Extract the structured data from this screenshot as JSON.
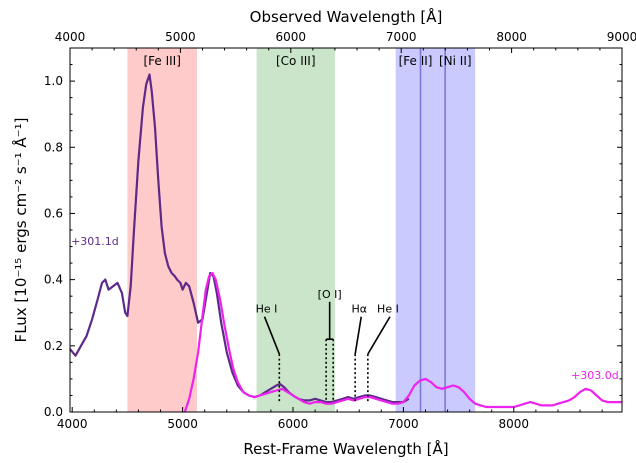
{
  "chart_data": {
    "type": "line",
    "title": "",
    "xlabel": "Rest-Frame Wavelength [Å]",
    "x2label": "Observed Wavelength [Å]",
    "ylabel": "FLux [10⁻¹⁵ ergs cm⁻² s⁻¹ Å⁻¹]",
    "xlim": [
      3980,
      8980
    ],
    "ylim": [
      0,
      1.1
    ],
    "x2lim": [
      4000,
      9000
    ],
    "xticks": [
      4000,
      5000,
      6000,
      7000,
      8000
    ],
    "xtick_labels": [
      "4000",
      "5000",
      "6000",
      "7000",
      "8000"
    ],
    "x2ticks": [
      4000,
      5000,
      6000,
      7000,
      8000,
      9000
    ],
    "x2tick_labels": [
      "4000",
      "5000",
      "6000",
      "7000",
      "8000",
      "9000"
    ],
    "yticks": [
      0,
      0.2,
      0.4,
      0.6,
      0.8,
      1.0
    ],
    "ytick_labels": [
      "0.0",
      "0.2",
      "0.4",
      "0.6",
      "0.8",
      "1.0"
    ],
    "grid": false,
    "bands": [
      {
        "label": "[Fe III]",
        "x0": 4500,
        "x1": 5130,
        "color": "#ff9f9f"
      },
      {
        "label": "[Co III]",
        "x0": 5670,
        "x1": 6380,
        "color": "#9fcf9f"
      },
      {
        "label": "[Fe II]",
        "x0": 6930,
        "x1": 7290,
        "color": "#9f9fff"
      },
      {
        "label": "[Ni II]",
        "x0": 7290,
        "x1": 7650,
        "color": "#9f9fff"
      }
    ],
    "band_lines": [
      7155,
      7378
    ],
    "series": [
      {
        "name": "+301.1d",
        "color": "#5e2a8a",
        "x": [
          3980,
          4030,
          4080,
          4130,
          4180,
          4230,
          4270,
          4300,
          4330,
          4370,
          4410,
          4450,
          4480,
          4500,
          4530,
          4560,
          4600,
          4640,
          4670,
          4700,
          4720,
          4750,
          4780,
          4810,
          4840,
          4870,
          4900,
          4930,
          4950,
          4980,
          5000,
          5030,
          5060,
          5100,
          5140,
          5180,
          5200,
          5230,
          5250,
          5280,
          5310,
          5350,
          5400,
          5450,
          5500,
          5550,
          5600,
          5650,
          5700,
          5750,
          5800,
          5850,
          5880,
          5920,
          5960,
          6000,
          6050,
          6100,
          6150,
          6200,
          6250,
          6300,
          6350,
          6400,
          6450,
          6500,
          6550,
          6600,
          6650,
          6700,
          6750,
          6800,
          6850,
          6900,
          6950,
          7000,
          7050
        ],
        "y": [
          0.19,
          0.17,
          0.2,
          0.23,
          0.28,
          0.34,
          0.39,
          0.4,
          0.37,
          0.38,
          0.39,
          0.36,
          0.3,
          0.29,
          0.38,
          0.55,
          0.76,
          0.92,
          0.99,
          1.02,
          0.97,
          0.86,
          0.7,
          0.56,
          0.48,
          0.44,
          0.42,
          0.41,
          0.4,
          0.39,
          0.37,
          0.39,
          0.38,
          0.33,
          0.27,
          0.28,
          0.32,
          0.38,
          0.42,
          0.41,
          0.36,
          0.27,
          0.18,
          0.12,
          0.08,
          0.06,
          0.05,
          0.045,
          0.05,
          0.06,
          0.07,
          0.08,
          0.085,
          0.075,
          0.06,
          0.05,
          0.04,
          0.035,
          0.035,
          0.04,
          0.035,
          0.03,
          0.03,
          0.035,
          0.04,
          0.045,
          0.04,
          0.045,
          0.05,
          0.05,
          0.045,
          0.04,
          0.035,
          0.03,
          0.03,
          0.03,
          0.04
        ]
      },
      {
        "name": "+303.0d",
        "color": "#ee22ee",
        "x": [
          5020,
          5060,
          5100,
          5140,
          5180,
          5210,
          5240,
          5270,
          5300,
          5340,
          5380,
          5420,
          5460,
          5500,
          5550,
          5600,
          5650,
          5700,
          5750,
          5800,
          5850,
          5900,
          5950,
          6000,
          6050,
          6100,
          6150,
          6200,
          6250,
          6300,
          6350,
          6400,
          6450,
          6500,
          6550,
          6600,
          6650,
          6700,
          6750,
          6800,
          6850,
          6900,
          6950,
          7000,
          7050,
          7100,
          7150,
          7200,
          7250,
          7300,
          7350,
          7400,
          7450,
          7500,
          7550,
          7600,
          7650,
          7700,
          7750,
          7800,
          7850,
          7900,
          7950,
          8000,
          8050,
          8100,
          8150,
          8200,
          8250,
          8300,
          8350,
          8400,
          8450,
          8500,
          8550,
          8600,
          8650,
          8700,
          8750,
          8800,
          8850,
          8900,
          8950,
          8980
        ],
        "y": [
          0.0,
          0.04,
          0.1,
          0.18,
          0.29,
          0.37,
          0.41,
          0.42,
          0.4,
          0.34,
          0.26,
          0.19,
          0.13,
          0.09,
          0.06,
          0.05,
          0.045,
          0.05,
          0.055,
          0.06,
          0.065,
          0.07,
          0.06,
          0.05,
          0.04,
          0.03,
          0.025,
          0.03,
          0.03,
          0.025,
          0.025,
          0.03,
          0.035,
          0.04,
          0.035,
          0.04,
          0.045,
          0.045,
          0.04,
          0.035,
          0.03,
          0.025,
          0.025,
          0.03,
          0.05,
          0.08,
          0.095,
          0.1,
          0.09,
          0.075,
          0.07,
          0.075,
          0.08,
          0.075,
          0.06,
          0.04,
          0.025,
          0.02,
          0.015,
          0.015,
          0.015,
          0.015,
          0.015,
          0.015,
          0.02,
          0.025,
          0.03,
          0.025,
          0.02,
          0.02,
          0.02,
          0.025,
          0.03,
          0.035,
          0.045,
          0.06,
          0.07,
          0.065,
          0.05,
          0.035,
          0.03,
          0.03,
          0.03,
          0.03
        ]
      }
    ],
    "epoch_labels": [
      {
        "text": "+301.1d",
        "color": "#5e2a8a",
        "x": 3990,
        "y": 0.505
      },
      {
        "text": "+303.0d",
        "color": "#ee22ee",
        "x": 8950,
        "y": 0.1
      }
    ],
    "line_ids": [
      {
        "text": "He I",
        "x": 5876,
        "y_top": 0.175,
        "y_bottom": 0.03,
        "label_x": 5760,
        "label_y": 0.3
      },
      {
        "text": "[O I]",
        "x": 6300,
        "x_b": 6364,
        "y_top": 0.22,
        "y_bottom": 0.03,
        "label_x": 6332,
        "label_y": 0.345
      },
      {
        "text": "Hα",
        "x": 6563,
        "y_top": 0.175,
        "y_bottom": 0.03,
        "label_x": 6600,
        "label_y": 0.3
      },
      {
        "text": "He I",
        "x": 6678,
        "y_top": 0.175,
        "y_bottom": 0.03,
        "label_x": 6860,
        "label_y": 0.3
      }
    ]
  }
}
